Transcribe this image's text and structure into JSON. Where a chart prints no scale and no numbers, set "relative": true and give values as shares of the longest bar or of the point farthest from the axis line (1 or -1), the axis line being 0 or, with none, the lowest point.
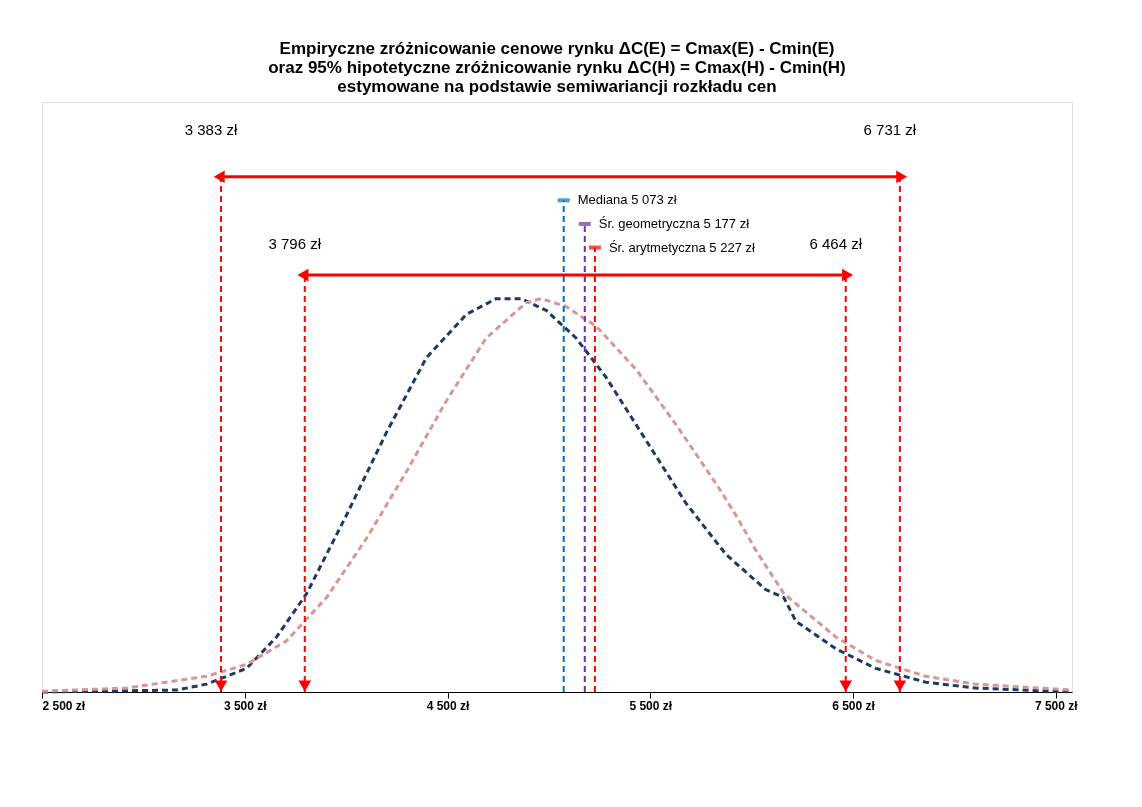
{
  "chart_data": {
    "type": "line",
    "title": "Empiryczne zróżnicowanie cenowe rynku ΔC(E) = Cmax(E) - Cmin(E)\noraz 95% hipotetyczne zróżnicowanie rynku ΔC(H) = Cmax(H) - Cmin(H)\nestymowane na podstawie semiwariancji rozkładu cen",
    "relative": true,
    "line_style": "dashed",
    "marker": "none",
    "grid": false,
    "xlim": [
      2500,
      7580
    ],
    "xticks": [
      {
        "value": 2500,
        "label": "2 500 zł"
      },
      {
        "value": 3500,
        "label": "3 500 zł"
      },
      {
        "value": 4500,
        "label": "4 500 zł"
      },
      {
        "value": 5500,
        "label": "5 500 zł"
      },
      {
        "value": 6500,
        "label": "6 500 zł"
      },
      {
        "value": 7500,
        "label": "7 500 zł"
      }
    ],
    "series": [
      {
        "color": "#1f3864",
        "x": [
          2500,
          3165,
          3312,
          3509,
          3657,
          3805,
          4002,
          4199,
          4396,
          4593,
          4740,
          4864,
          4987,
          5134,
          5282,
          5479,
          5676,
          5873,
          6070,
          6159,
          6218,
          6415,
          6612,
          6858,
          7104,
          7580
        ],
        "values": [
          0,
          0.005,
          0.02,
          0.06,
          0.14,
          0.25,
          0.45,
          0.66,
          0.85,
          0.96,
          1.0,
          1.0,
          0.97,
          0.9,
          0.8,
          0.64,
          0.48,
          0.35,
          0.26,
          0.24,
          0.18,
          0.11,
          0.06,
          0.025,
          0.01,
          0
        ]
      },
      {
        "color": "#d99694",
        "x": [
          2500,
          2918,
          3312,
          3509,
          3706,
          3903,
          4100,
          4297,
          4494,
          4691,
          4888,
          4962,
          5085,
          5233,
          5430,
          5627,
          5824,
          5922,
          6021,
          6159,
          6415,
          6612,
          6858,
          7104,
          7580
        ],
        "values": [
          0.002,
          0.01,
          0.04,
          0.07,
          0.13,
          0.24,
          0.39,
          0.56,
          0.74,
          0.9,
          0.99,
          1.0,
          0.98,
          0.93,
          0.82,
          0.68,
          0.53,
          0.45,
          0.36,
          0.25,
          0.14,
          0.08,
          0.04,
          0.02,
          0.005
        ]
      }
    ],
    "ref_lines": [
      {
        "axis": "x",
        "value": 3383,
        "label": "3 383 zł",
        "color": "#ff0000",
        "line_style": "dashed"
      },
      {
        "axis": "x",
        "value": 6731,
        "label": "6 731 zł",
        "color": "#ff0000",
        "line_style": "dashed"
      },
      {
        "axis": "x",
        "value": 3796,
        "label": "3 796 zł",
        "color": "#ff0000",
        "line_style": "dashed"
      },
      {
        "axis": "x",
        "value": 6464,
        "label": "6 464 zł",
        "color": "#ff0000",
        "line_style": "dashed"
      },
      {
        "axis": "x",
        "value": 5073,
        "label": "Mediana 5 073 zł",
        "color": "#0070c0",
        "line_style": "dashed"
      },
      {
        "axis": "x",
        "value": 5177,
        "label": "Śr. geometryczna 5 177 zł",
        "color": "#7030a0",
        "line_style": "dashed"
      },
      {
        "axis": "x",
        "value": 5227,
        "label": "Śr. arytmetyczna 5 227 zł",
        "color": "#ff0000",
        "line_style": "dashed"
      }
    ]
  }
}
